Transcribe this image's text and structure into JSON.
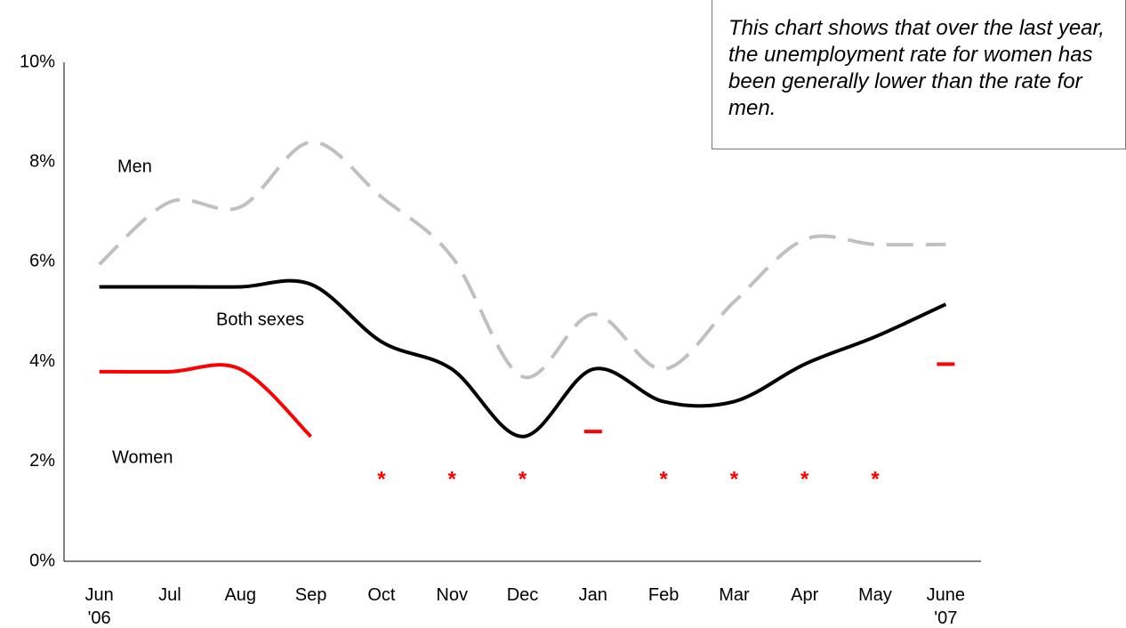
{
  "chart_data": {
    "type": "line",
    "annotation": "This chart shows that over the last year, the unemployment rate for women has been generally lower than the rate for men.",
    "categories": [
      "Jun\n'06",
      "Jul",
      "Aug",
      "Sep",
      "Oct",
      "Nov",
      "Dec",
      "Jan",
      "Feb",
      "Mar",
      "Apr",
      "May",
      "June\n'07"
    ],
    "series": [
      {
        "name": "Men",
        "color": "#c0c0c0",
        "dash": true,
        "values": [
          5.95,
          7.2,
          7.1,
          8.4,
          7.3,
          6.1,
          3.7,
          4.95,
          3.85,
          5.2,
          6.45,
          6.35,
          6.35
        ]
      },
      {
        "name": "Both sexes",
        "color": "#000000",
        "dash": false,
        "values": [
          5.5,
          5.5,
          5.5,
          5.55,
          4.4,
          3.85,
          2.5,
          3.85,
          3.2,
          3.2,
          3.95,
          4.5,
          5.15
        ]
      },
      {
        "name": "Women",
        "color": "#ff0000",
        "dash": false,
        "null_marker": "*",
        "values": [
          3.8,
          3.8,
          3.85,
          2.5,
          null,
          null,
          null,
          2.6,
          null,
          null,
          null,
          null,
          3.95
        ]
      }
    ],
    "ylim": [
      0,
      10
    ],
    "yticks": [
      {
        "value": 0,
        "label": "0%"
      },
      {
        "value": 2,
        "label": "2%"
      },
      {
        "value": 4,
        "label": "4%"
      },
      {
        "value": 6,
        "label": "6%"
      },
      {
        "value": 8,
        "label": "8%"
      },
      {
        "value": 10,
        "label": "10%"
      }
    ],
    "grid": false
  }
}
